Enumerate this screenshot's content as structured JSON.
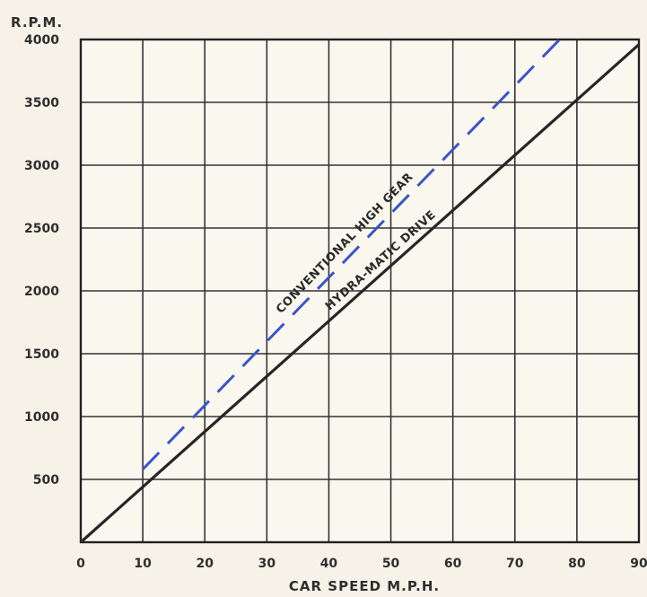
{
  "chart_data": {
    "type": "line",
    "title": "",
    "xlabel": "CAR SPEED M.P.H.",
    "ylabel": "R.P.M.",
    "xlim": [
      0,
      90
    ],
    "ylim": [
      0,
      4000
    ],
    "x_ticks": [
      0,
      10,
      20,
      30,
      40,
      50,
      60,
      70,
      80,
      90
    ],
    "x_tick_labels": [
      "0",
      "10",
      "20",
      "30",
      "40",
      "50",
      "60",
      "70",
      "80",
      "90"
    ],
    "y_ticks": [
      500,
      1000,
      1500,
      2000,
      2500,
      3000,
      3500,
      4000
    ],
    "y_tick_labels": [
      "500",
      "1000",
      "1500",
      "2000",
      "2500",
      "3000",
      "3500",
      "4000"
    ],
    "grid": true,
    "series": [
      {
        "name": "CONVENTIONAL HIGH GEAR",
        "x": [
          10,
          78
        ],
        "y": [
          580,
          4040
        ],
        "color": "#3b55c8",
        "style": "dashed"
      },
      {
        "name": "HYDRA-MATIC DRIVE",
        "x": [
          0,
          90
        ],
        "y": [
          0,
          3960
        ],
        "color": "#262626",
        "style": "solid"
      }
    ]
  }
}
